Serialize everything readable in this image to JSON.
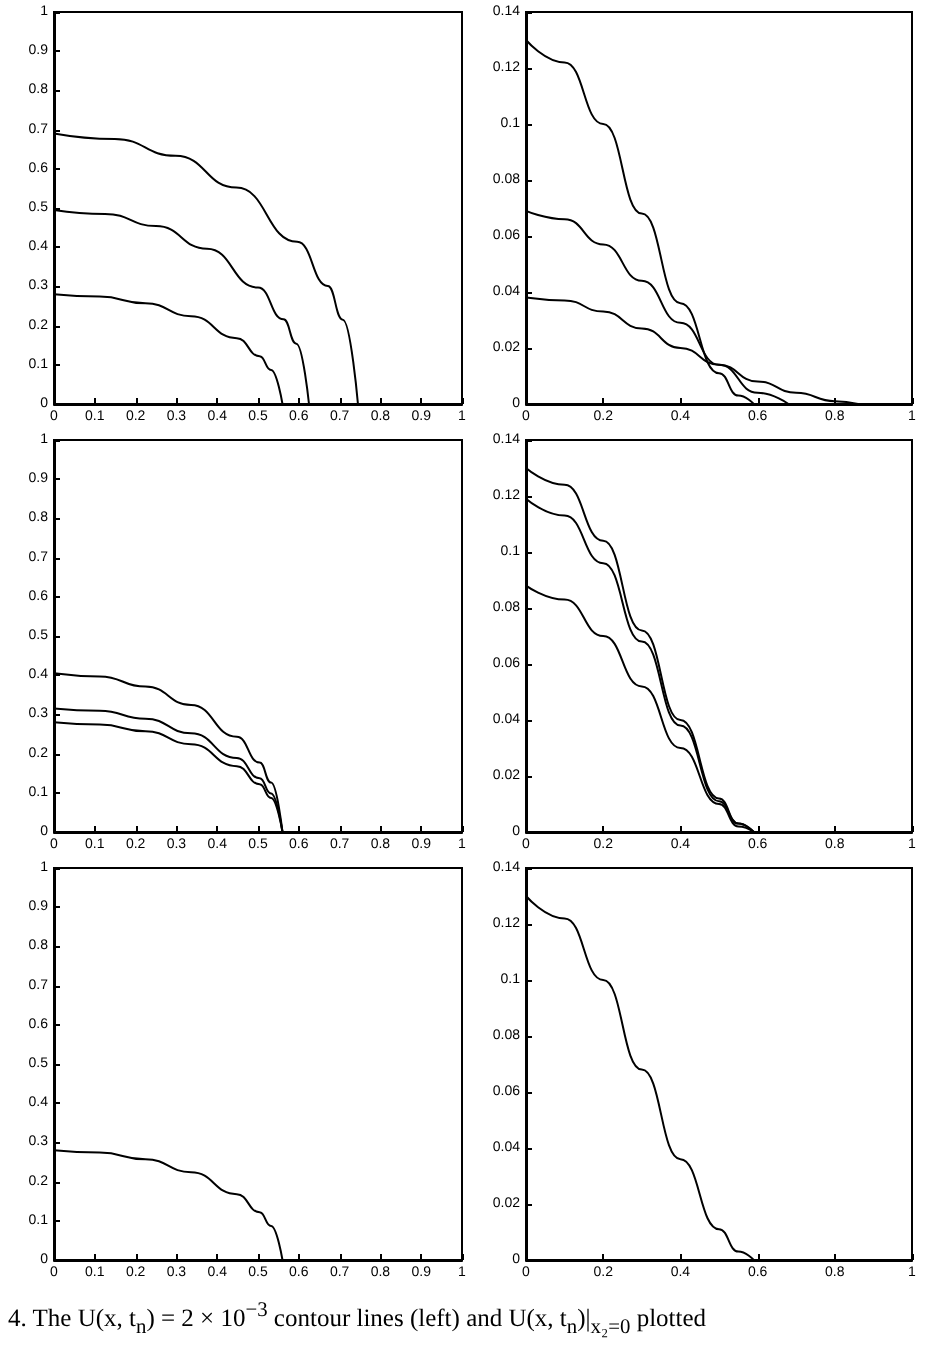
{
  "chart_data": [
    {
      "type": "line",
      "xlim": [
        0,
        1
      ],
      "ylim": [
        0,
        1
      ],
      "xticks": [
        0,
        0.1,
        0.2,
        0.3,
        0.4,
        0.5,
        0.6,
        0.7,
        0.8,
        0.9,
        1
      ],
      "yticks": [
        0,
        0.1,
        0.2,
        0.3,
        0.4,
        0.5,
        0.6,
        0.7,
        0.8,
        0.9,
        1
      ],
      "grid": false,
      "marker": "none",
      "line_style": "solid",
      "series": [
        {
          "color": "#000000",
          "x": [
            0,
            0.112,
            0.224,
            0.336,
            0.448,
            0.504,
            0.532,
            0.56
          ],
          "values": [
            0.28,
            0.274,
            0.257,
            0.224,
            0.168,
            0.122,
            0.087,
            0
          ]
        },
        {
          "color": "#000000",
          "x": [
            0,
            0.125,
            0.25,
            0.375,
            0.5,
            0.5625,
            0.594,
            0.625
          ],
          "values": [
            0.495,
            0.485,
            0.454,
            0.396,
            0.297,
            0.216,
            0.154,
            0
          ]
        },
        {
          "color": "#000000",
          "x": [
            0,
            0.149,
            0.298,
            0.447,
            0.596,
            0.671,
            0.708,
            0.745
          ],
          "values": [
            0.69,
            0.676,
            0.633,
            0.552,
            0.414,
            0.301,
            0.215,
            0
          ]
        }
      ]
    },
    {
      "type": "line",
      "xlim": [
        0,
        1
      ],
      "ylim": [
        0,
        0.14
      ],
      "xticks": [
        0,
        0.2,
        0.4,
        0.6,
        0.8,
        1
      ],
      "yticks": [
        0,
        0.02,
        0.04,
        0.06,
        0.08,
        0.1,
        0.12,
        0.14
      ],
      "grid": false,
      "marker": "none",
      "line_style": "solid",
      "series": [
        {
          "color": "#000000",
          "x": [
            0,
            0.1,
            0.2,
            0.3,
            0.4,
            0.5,
            0.55,
            0.59
          ],
          "values": [
            0.13,
            0.122,
            0.1,
            0.068,
            0.036,
            0.011,
            0.003,
            0
          ]
        },
        {
          "color": "#000000",
          "x": [
            0,
            0.1,
            0.2,
            0.3,
            0.4,
            0.5,
            0.6,
            0.68
          ],
          "values": [
            0.069,
            0.066,
            0.057,
            0.044,
            0.029,
            0.014,
            0.004,
            0
          ]
        },
        {
          "color": "#000000",
          "x": [
            0,
            0.1,
            0.2,
            0.3,
            0.4,
            0.5,
            0.6,
            0.7,
            0.8,
            0.86
          ],
          "values": [
            0.038,
            0.037,
            0.033,
            0.027,
            0.02,
            0.014,
            0.008,
            0.004,
            0.001,
            0
          ]
        }
      ]
    },
    {
      "type": "line",
      "xlim": [
        0,
        1
      ],
      "ylim": [
        0,
        1
      ],
      "xticks": [
        0,
        0.1,
        0.2,
        0.3,
        0.4,
        0.5,
        0.6,
        0.7,
        0.8,
        0.9,
        1
      ],
      "yticks": [
        0,
        0.1,
        0.2,
        0.3,
        0.4,
        0.5,
        0.6,
        0.7,
        0.8,
        0.9,
        1
      ],
      "grid": false,
      "marker": "none",
      "line_style": "solid",
      "series": [
        {
          "color": "#000000",
          "x": [
            0,
            0.112,
            0.224,
            0.336,
            0.448,
            0.504,
            0.532,
            0.56
          ],
          "values": [
            0.28,
            0.274,
            0.257,
            0.224,
            0.168,
            0.122,
            0.087,
            0
          ]
        },
        {
          "color": "#000000",
          "x": [
            0,
            0.112,
            0.224,
            0.336,
            0.448,
            0.504,
            0.532,
            0.56
          ],
          "values": [
            0.315,
            0.309,
            0.289,
            0.252,
            0.189,
            0.137,
            0.098,
            0
          ]
        },
        {
          "color": "#000000",
          "x": [
            0,
            0.112,
            0.224,
            0.336,
            0.448,
            0.504,
            0.532,
            0.56
          ],
          "values": [
            0.405,
            0.397,
            0.371,
            0.324,
            0.243,
            0.177,
            0.126,
            0
          ]
        }
      ]
    },
    {
      "type": "line",
      "xlim": [
        0,
        1
      ],
      "ylim": [
        0,
        0.14
      ],
      "xticks": [
        0,
        0.2,
        0.4,
        0.6,
        0.8,
        1
      ],
      "yticks": [
        0,
        0.02,
        0.04,
        0.06,
        0.08,
        0.1,
        0.12,
        0.14
      ],
      "grid": false,
      "marker": "none",
      "line_style": "solid",
      "series": [
        {
          "color": "#000000",
          "x": [
            0,
            0.1,
            0.2,
            0.3,
            0.4,
            0.5,
            0.55,
            0.59
          ],
          "values": [
            0.13,
            0.124,
            0.104,
            0.072,
            0.04,
            0.012,
            0.003,
            0
          ]
        },
        {
          "color": "#000000",
          "x": [
            0,
            0.1,
            0.2,
            0.3,
            0.4,
            0.5,
            0.55,
            0.59
          ],
          "values": [
            0.119,
            0.113,
            0.096,
            0.068,
            0.038,
            0.011,
            0.003,
            0
          ]
        },
        {
          "color": "#000000",
          "x": [
            0,
            0.1,
            0.2,
            0.3,
            0.4,
            0.5,
            0.55,
            0.59
          ],
          "values": [
            0.088,
            0.083,
            0.07,
            0.052,
            0.03,
            0.01,
            0.002,
            0
          ]
        }
      ]
    },
    {
      "type": "line",
      "xlim": [
        0,
        1
      ],
      "ylim": [
        0,
        1
      ],
      "xticks": [
        0,
        0.1,
        0.2,
        0.3,
        0.4,
        0.5,
        0.6,
        0.7,
        0.8,
        0.9,
        1
      ],
      "yticks": [
        0,
        0.1,
        0.2,
        0.3,
        0.4,
        0.5,
        0.6,
        0.7,
        0.8,
        0.9,
        1
      ],
      "grid": false,
      "marker": "none",
      "line_style": "solid",
      "annotations": [
        "4. The U(x, t$_{n}$) = 2 × 10$^{−3}$ contour lines (left) and U(x, t$_{n}$)|$_{x₂=0}$ plotted"
      ],
      "series": [
        {
          "color": "#000000",
          "x": [
            0,
            0.112,
            0.224,
            0.336,
            0.448,
            0.504,
            0.532,
            0.56
          ],
          "values": [
            0.28,
            0.274,
            0.257,
            0.224,
            0.168,
            0.122,
            0.087,
            0
          ]
        }
      ]
    },
    {
      "type": "line",
      "xlim": [
        0,
        1
      ],
      "ylim": [
        0,
        0.14
      ],
      "xticks": [
        0,
        0.2,
        0.4,
        0.6,
        0.8,
        1
      ],
      "yticks": [
        0,
        0.02,
        0.04,
        0.06,
        0.08,
        0.1,
        0.12,
        0.14
      ],
      "grid": false,
      "marker": "none",
      "line_style": "solid",
      "series": [
        {
          "color": "#000000",
          "x": [
            0,
            0.1,
            0.2,
            0.3,
            0.4,
            0.5,
            0.55,
            0.59
          ],
          "values": [
            0.13,
            0.122,
            0.1,
            0.068,
            0.036,
            0.011,
            0.003,
            0
          ]
        }
      ]
    }
  ]
}
